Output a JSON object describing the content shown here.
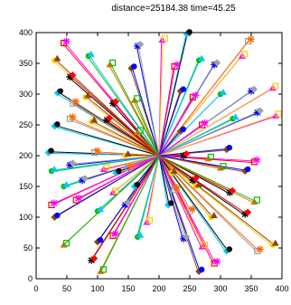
{
  "chart_data": {
    "type": "line",
    "title": "distance=25184.38 time=45.25",
    "xlabel": "",
    "ylabel": "",
    "xlim": [
      0,
      400
    ],
    "ylim": [
      0,
      400
    ],
    "x_ticks": [
      "0",
      "50",
      "100",
      "150",
      "200",
      "250",
      "300",
      "350",
      "400"
    ],
    "y_ticks": [
      "0",
      "50",
      "100",
      "150",
      "200",
      "250",
      "300",
      "350",
      "400"
    ],
    "grid": false,
    "legend": "none",
    "center": [
      200,
      200
    ],
    "line_colors": [
      "#ff0000",
      "#00c000",
      "#0000ff",
      "#ff00ff",
      "#00c8ff",
      "#a0a0a0",
      "#ffcc00",
      "#000000",
      "#ff6600",
      "#8b4513"
    ],
    "endpoints": [
      [
        45,
        383
      ],
      [
        85,
        362
      ],
      [
        165,
        378
      ],
      [
        205,
        388
      ],
      [
        245,
        398
      ],
      [
        345,
        386
      ],
      [
        30,
        355
      ],
      [
        55,
        328
      ],
      [
        120,
        348
      ],
      [
        155,
        342
      ],
      [
        225,
        345
      ],
      [
        265,
        355
      ],
      [
        290,
        348
      ],
      [
        335,
        362
      ],
      [
        35,
        302
      ],
      [
        60,
        285
      ],
      [
        80,
        295
      ],
      [
        125,
        285
      ],
      [
        160,
        290
      ],
      [
        235,
        305
      ],
      [
        255,
        295
      ],
      [
        300,
        300
      ],
      [
        350,
        305
      ],
      [
        385,
        310
      ],
      [
        30,
        248
      ],
      [
        55,
        260
      ],
      [
        90,
        255
      ],
      [
        115,
        258
      ],
      [
        165,
        238
      ],
      [
        235,
        240
      ],
      [
        270,
        250
      ],
      [
        320,
        260
      ],
      [
        360,
        270
      ],
      [
        390,
        265
      ],
      [
        20,
        205
      ],
      [
        95,
        205
      ],
      [
        145,
        200
      ],
      [
        240,
        200
      ],
      [
        280,
        195
      ],
      [
        310,
        210
      ],
      [
        355,
        190
      ],
      [
        25,
        175
      ],
      [
        55,
        185
      ],
      [
        110,
        178
      ],
      [
        130,
        172
      ],
      [
        150,
        180
      ],
      [
        220,
        172
      ],
      [
        255,
        160
      ],
      [
        300,
        180
      ],
      [
        340,
        175
      ],
      [
        25,
        120
      ],
      [
        45,
        150
      ],
      [
        75,
        160
      ],
      [
        125,
        140
      ],
      [
        160,
        150
      ],
      [
        225,
        145
      ],
      [
        260,
        150
      ],
      [
        315,
        140
      ],
      [
        355,
        125
      ],
      [
        30,
        100
      ],
      [
        65,
        128
      ],
      [
        100,
        110
      ],
      [
        145,
        120
      ],
      [
        180,
        92
      ],
      [
        215,
        120
      ],
      [
        250,
        110
      ],
      [
        285,
        100
      ],
      [
        340,
        105
      ],
      [
        45,
        55
      ],
      [
        100,
        60
      ],
      [
        125,
        70
      ],
      [
        165,
        68
      ],
      [
        240,
        65
      ],
      [
        270,
        52
      ],
      [
        310,
        45
      ],
      [
        360,
        45
      ],
      [
        385,
        55
      ],
      [
        90,
        30
      ],
      [
        105,
        12
      ],
      [
        265,
        12
      ],
      [
        290,
        25
      ]
    ]
  }
}
